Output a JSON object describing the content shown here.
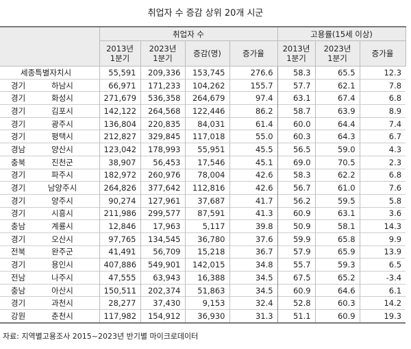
{
  "title": "취업자 수 증감 상위 20개 시군",
  "table": {
    "group_headers": [
      "취업자 수",
      "고용률(15세 이상)"
    ],
    "column_headers": [
      "2013년\n1분기",
      "2023년\n1분기",
      "증감(명)",
      "증가율",
      "2013년\n1분기",
      "2023년\n1분기",
      "증가율"
    ],
    "rows": [
      {
        "region": "세종특별자치시",
        "values": [
          "55,591",
          "209,336",
          "153,745",
          "276.6",
          "58.3",
          "65.5",
          "12.3"
        ]
      },
      {
        "province": "경기",
        "city": "하남시",
        "values": [
          "66,971",
          "171,233",
          "104,262",
          "155.7",
          "57.7",
          "62.1",
          "7.8"
        ]
      },
      {
        "province": "경기",
        "city": "화성시",
        "values": [
          "271,679",
          "536,358",
          "264,679",
          "97.4",
          "63.1",
          "67.4",
          "6.8"
        ]
      },
      {
        "province": "경기",
        "city": "김포시",
        "values": [
          "142,122",
          "264,568",
          "122,446",
          "86.2",
          "58.7",
          "63.9",
          "8.9"
        ]
      },
      {
        "province": "경기",
        "city": "광주시",
        "values": [
          "136,804",
          "220,835",
          "84,031",
          "61.4",
          "60.0",
          "64.4",
          "7.4"
        ]
      },
      {
        "province": "경기",
        "city": "평택시",
        "values": [
          "212,827",
          "329,845",
          "117,018",
          "55.0",
          "60.3",
          "64.3",
          "6.7"
        ]
      },
      {
        "province": "경남",
        "city": "양산시",
        "values": [
          "123,042",
          "178,993",
          "55,951",
          "45.5",
          "56.5",
          "59.0",
          "4.3"
        ]
      },
      {
        "province": "충북",
        "city": "진천군",
        "values": [
          "38,907",
          "56,453",
          "17,546",
          "45.1",
          "69.0",
          "70.5",
          "2.3"
        ]
      },
      {
        "province": "경기",
        "city": "파주시",
        "values": [
          "182,972",
          "260,976",
          "78,004",
          "42.6",
          "58.3",
          "62.2",
          "6.8"
        ]
      },
      {
        "province": "경기",
        "city": "남양주시",
        "values": [
          "264,826",
          "377,642",
          "112,816",
          "42.6",
          "56.7",
          "61.0",
          "7.6"
        ]
      },
      {
        "province": "경기",
        "city": "양주시",
        "values": [
          "90,274",
          "127,961",
          "37,687",
          "41.7",
          "56.2",
          "59.5",
          "5.8"
        ]
      },
      {
        "province": "경기",
        "city": "시흥시",
        "values": [
          "211,986",
          "299,577",
          "87,591",
          "41.3",
          "60.9",
          "63.1",
          "3.6"
        ]
      },
      {
        "province": "충남",
        "city": "계룡시",
        "values": [
          "12,846",
          "17,963",
          "5,117",
          "39.8",
          "50.9",
          "58.1",
          "14.3"
        ]
      },
      {
        "province": "경기",
        "city": "오산시",
        "values": [
          "97,765",
          "134,545",
          "36,780",
          "37.6",
          "59.9",
          "65.8",
          "9.9"
        ]
      },
      {
        "province": "전북",
        "city": "완주군",
        "values": [
          "41,491",
          "56,709",
          "15,218",
          "36.7",
          "57.9",
          "65.9",
          "13.9"
        ]
      },
      {
        "province": "경기",
        "city": "용인시",
        "values": [
          "407,886",
          "549,901",
          "142,015",
          "34.8",
          "55.7",
          "59.3",
          "6.5"
        ]
      },
      {
        "province": "전남",
        "city": "나주시",
        "values": [
          "47,555",
          "63,943",
          "16,388",
          "34.5",
          "67.5",
          "65.2",
          "-3.4"
        ]
      },
      {
        "province": "충남",
        "city": "아산시",
        "values": [
          "150,511",
          "202,374",
          "51,863",
          "34.5",
          "60.9",
          "64.6",
          "6.1"
        ]
      },
      {
        "province": "경기",
        "city": "과천시",
        "values": [
          "28,277",
          "37,430",
          "9,153",
          "32.4",
          "52.8",
          "60.3",
          "14.2"
        ]
      },
      {
        "province": "강원",
        "city": "춘천시",
        "values": [
          "117,982",
          "154,912",
          "36,930",
          "31.3",
          "51.1",
          "60.9",
          "19.3"
        ]
      }
    ]
  },
  "source": "자료: 지역별고용조사 2015~2023년 반기별 마이크로데이터"
}
